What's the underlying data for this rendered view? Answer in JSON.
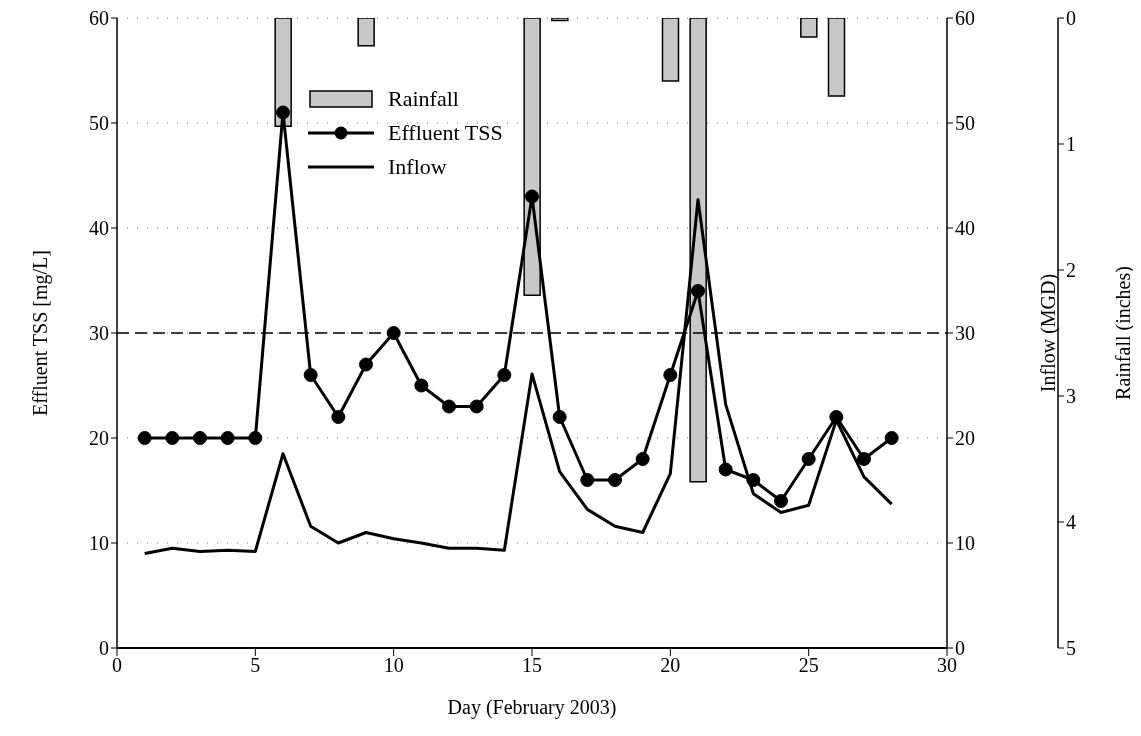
{
  "chart_data": {
    "type": "line",
    "xlabel": "Day (February 2003)",
    "ylabel": "Effluent TSS [mg/L]",
    "y2label": "Inflow (MGD)",
    "y3label": "Rainfall (inches)",
    "xlim": [
      0,
      30
    ],
    "xticks": [
      0,
      5,
      10,
      15,
      20,
      25,
      30
    ],
    "ylim": [
      0,
      60
    ],
    "yticks": [
      0,
      10,
      20,
      30,
      40,
      50,
      60
    ],
    "y2lim": [
      0,
      60
    ],
    "y2ticks": [
      0,
      10,
      20,
      30,
      40,
      50,
      60
    ],
    "y3lim": [
      5,
      0
    ],
    "y3ticks": [
      0,
      1,
      2,
      3,
      4,
      5
    ],
    "grid": "y",
    "legend": "top left",
    "ref_lines": [
      {
        "axis": "y",
        "value": 30,
        "line_style": "dashed",
        "color": "#000000"
      }
    ],
    "series": [
      {
        "name": "Rainfall",
        "type": "bar",
        "axis": "y3",
        "color": "#c8c8c8",
        "x": [
          6,
          9,
          15,
          16,
          20,
          21,
          25,
          26
        ],
        "values": [
          0.86,
          0.22,
          2.2,
          0.02,
          0.5,
          3.68,
          0.15,
          0.62
        ]
      },
      {
        "name": "Effluent TSS",
        "axis": "y",
        "color": "#000000",
        "marker": "circle",
        "x": [
          1,
          2,
          3,
          4,
          5,
          6,
          7,
          8,
          9,
          10,
          11,
          12,
          13,
          14,
          15,
          16,
          17,
          18,
          19,
          20,
          21,
          22,
          23,
          24,
          25,
          26,
          27,
          28
        ],
        "values": [
          20,
          20,
          20,
          20,
          20,
          51,
          26,
          22,
          27,
          30,
          25,
          23,
          23,
          26,
          43,
          22,
          16,
          16,
          18,
          26,
          34,
          17,
          16,
          14,
          18,
          22,
          18,
          20
        ]
      },
      {
        "name": "Inflow",
        "axis": "y2",
        "color": "#000000",
        "marker": "none",
        "x": [
          1,
          2,
          3,
          4,
          5,
          6,
          7,
          8,
          9,
          10,
          11,
          12,
          13,
          14,
          15,
          16,
          17,
          18,
          19,
          20,
          21,
          22,
          23,
          24,
          25,
          26,
          27,
          28
        ],
        "values": [
          9.0,
          9.5,
          9.2,
          9.3,
          9.2,
          18.5,
          11.6,
          10.0,
          11.0,
          10.4,
          10.0,
          9.5,
          9.5,
          9.3,
          26.1,
          16.8,
          13.2,
          11.6,
          11.0,
          16.6,
          42.7,
          23.2,
          14.7,
          12.9,
          13.6,
          21.7,
          16.3,
          13.7
        ]
      }
    ]
  }
}
